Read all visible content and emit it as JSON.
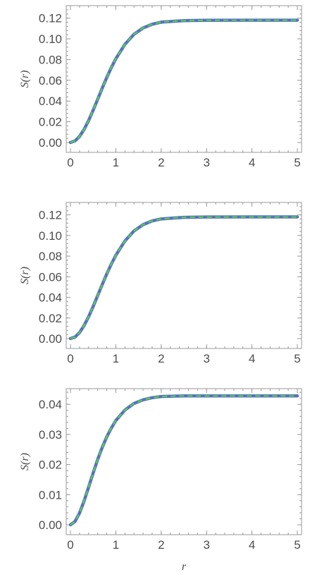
{
  "chart_data": [
    {
      "type": "line",
      "ylabel": "S(r)",
      "xlabel": "",
      "xlim": [
        0,
        5
      ],
      "ylim": [
        0,
        0.13
      ],
      "x_ticks": [
        "0",
        "1",
        "2",
        "3",
        "4",
        "5"
      ],
      "y_ticks": [
        "0.00",
        "0.02",
        "0.04",
        "0.06",
        "0.08",
        "0.10",
        "0.12"
      ],
      "series": [
        {
          "color": "#5b6fc4",
          "style": "solid",
          "x": [
            0,
            0.1,
            0.2,
            0.3,
            0.4,
            0.5,
            0.6,
            0.7,
            0.8,
            0.9,
            1.0,
            1.2,
            1.4,
            1.6,
            1.8,
            2.0,
            2.5,
            3.0,
            4.0,
            5.0
          ],
          "y": [
            0,
            0.0015,
            0.0058,
            0.0126,
            0.0212,
            0.0311,
            0.0417,
            0.0524,
            0.0627,
            0.0722,
            0.0808,
            0.0947,
            0.1044,
            0.1105,
            0.1141,
            0.1161,
            0.1176,
            0.1179,
            0.118,
            0.118
          ]
        },
        {
          "color": "#4fd34a",
          "style": "dashed",
          "x": [
            0,
            0.1,
            0.2,
            0.3,
            0.4,
            0.5,
            0.6,
            0.7,
            0.8,
            0.9,
            1.0,
            1.2,
            1.4,
            1.6,
            1.8,
            2.0,
            2.5,
            3.0,
            4.0,
            5.0
          ],
          "y": [
            0,
            0.0015,
            0.0058,
            0.0126,
            0.0212,
            0.0311,
            0.0417,
            0.0524,
            0.0627,
            0.0722,
            0.0808,
            0.0947,
            0.1044,
            0.1105,
            0.1141,
            0.1161,
            0.1176,
            0.1179,
            0.118,
            0.118
          ]
        }
      ]
    },
    {
      "type": "line",
      "ylabel": "S(r)",
      "xlabel": "",
      "xlim": [
        0,
        5
      ],
      "ylim": [
        0,
        0.13
      ],
      "x_ticks": [
        "0",
        "1",
        "2",
        "3",
        "4",
        "5"
      ],
      "y_ticks": [
        "0.00",
        "0.02",
        "0.04",
        "0.06",
        "0.08",
        "0.10",
        "0.12"
      ],
      "series": [
        {
          "color": "#5b6fc4",
          "style": "solid",
          "x": [
            0,
            0.1,
            0.2,
            0.3,
            0.4,
            0.5,
            0.6,
            0.7,
            0.8,
            0.9,
            1.0,
            1.2,
            1.4,
            1.6,
            1.8,
            2.0,
            2.5,
            3.0,
            4.0,
            5.0
          ],
          "y": [
            0,
            0.0015,
            0.0058,
            0.0126,
            0.0212,
            0.0311,
            0.0417,
            0.0524,
            0.0627,
            0.0722,
            0.0808,
            0.0947,
            0.1044,
            0.1105,
            0.1141,
            0.1161,
            0.1176,
            0.1179,
            0.118,
            0.118
          ]
        },
        {
          "color": "#4fd34a",
          "style": "dashed",
          "x": [
            0,
            0.1,
            0.2,
            0.3,
            0.4,
            0.5,
            0.6,
            0.7,
            0.8,
            0.9,
            1.0,
            1.2,
            1.4,
            1.6,
            1.8,
            2.0,
            2.5,
            3.0,
            4.0,
            5.0
          ],
          "y": [
            0,
            0.0015,
            0.0058,
            0.0126,
            0.0212,
            0.0311,
            0.0417,
            0.0524,
            0.0627,
            0.0722,
            0.0808,
            0.0947,
            0.1044,
            0.1105,
            0.1141,
            0.1161,
            0.1176,
            0.1179,
            0.118,
            0.118
          ]
        }
      ]
    },
    {
      "type": "line",
      "ylabel": "S(r)",
      "xlabel": "r",
      "xlim": [
        0,
        5
      ],
      "ylim": [
        0,
        0.0445
      ],
      "x_ticks": [
        "0",
        "1",
        "2",
        "3",
        "4",
        "5"
      ],
      "y_ticks": [
        "0.00",
        "0.01",
        "0.02",
        "0.03",
        "0.04"
      ],
      "series": [
        {
          "color": "#5b6fc4",
          "style": "solid",
          "x": [
            0,
            0.1,
            0.2,
            0.3,
            0.4,
            0.5,
            0.6,
            0.7,
            0.8,
            0.9,
            1.0,
            1.2,
            1.4,
            1.6,
            1.8,
            2.0,
            2.5,
            3.0,
            4.0,
            5.0
          ],
          "y": [
            0,
            0.0011,
            0.0039,
            0.0079,
            0.0125,
            0.0172,
            0.0217,
            0.0257,
            0.0292,
            0.0321,
            0.0346,
            0.0381,
            0.0403,
            0.0415,
            0.0422,
            0.0426,
            0.0428,
            0.0428,
            0.0428,
            0.0428
          ]
        },
        {
          "color": "#4fd34a",
          "style": "dashed",
          "x": [
            0,
            0.1,
            0.2,
            0.3,
            0.4,
            0.5,
            0.6,
            0.7,
            0.8,
            0.9,
            1.0,
            1.2,
            1.4,
            1.6,
            1.8,
            2.0,
            2.5,
            3.0,
            4.0,
            5.0
          ],
          "y": [
            0,
            0.0011,
            0.0039,
            0.0079,
            0.0125,
            0.0172,
            0.0217,
            0.0257,
            0.0292,
            0.0321,
            0.0346,
            0.0381,
            0.0403,
            0.0415,
            0.0422,
            0.0426,
            0.0428,
            0.0428,
            0.0428,
            0.0428
          ]
        }
      ]
    }
  ]
}
